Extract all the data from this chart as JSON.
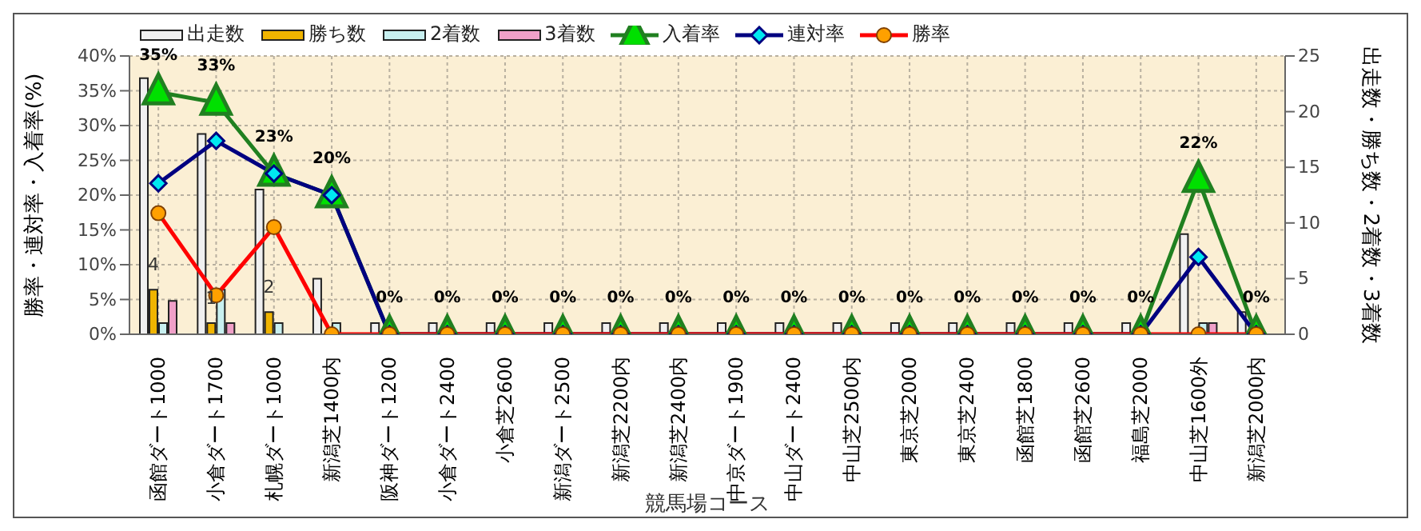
{
  "chart_data": {
    "type": "bar",
    "xlabel": "競馬場コース",
    "ylabel": "勝率・連対率・入着率(%)",
    "y2label": "出走数・勝ち数・2着数・3着数",
    "categories": [
      "函館ダート1000",
      "小倉ダート1700",
      "札幌ダート1000",
      "新潟芝1400内",
      "阪神ダート1200",
      "小倉ダート2400",
      "小倉芝2600",
      "新潟ダート2500",
      "新潟芝2200内",
      "新潟芝2400内",
      "中京ダート1900",
      "中山ダート2400",
      "中山芝2500内",
      "東京芝2000",
      "東京芝2400",
      "函館芝1800",
      "函館芝2600",
      "福島芝2000",
      "中山芝1600外",
      "新潟芝2000内"
    ],
    "series": [
      {
        "name": "出走数",
        "axis": "y2",
        "color": "#f0f0f0",
        "values": [
          23,
          18,
          13,
          5,
          1,
          1,
          1,
          1,
          1,
          1,
          1,
          1,
          1,
          1,
          1,
          1,
          1,
          1,
          9,
          2
        ]
      },
      {
        "name": "勝ち数",
        "axis": "y2",
        "color": "#f0b400",
        "values": [
          4,
          1,
          2,
          0,
          0,
          0,
          0,
          0,
          0,
          0,
          0,
          0,
          0,
          0,
          0,
          0,
          0,
          0,
          0,
          0
        ],
        "value_labels": [
          "4",
          "1",
          "2",
          null,
          null,
          null,
          null,
          null,
          null,
          null,
          null,
          null,
          null,
          null,
          null,
          null,
          null,
          null,
          null,
          null
        ]
      },
      {
        "name": "2着数",
        "axis": "y2",
        "color": "#c8f0f0",
        "values": [
          1,
          4,
          1,
          1,
          0,
          0,
          0,
          0,
          0,
          0,
          0,
          0,
          0,
          0,
          0,
          0,
          0,
          0,
          1,
          0
        ]
      },
      {
        "name": "3着数",
        "axis": "y2",
        "color": "#f0a0c8",
        "values": [
          3,
          1,
          0,
          0,
          0,
          0,
          0,
          0,
          0,
          0,
          0,
          0,
          0,
          0,
          0,
          0,
          0,
          0,
          1,
          0
        ]
      },
      {
        "name": "入着率",
        "type": "line",
        "color": "#208020",
        "marker": "triangle",
        "values": [
          34.8,
          33.3,
          23.1,
          20,
          0,
          0,
          0,
          0,
          0,
          0,
          0,
          0,
          0,
          0,
          0,
          0,
          0,
          0,
          22.2,
          0
        ],
        "value_labels": [
          "35%",
          "33%",
          "23%",
          "20%",
          "0%",
          "0%",
          "0%",
          "0%",
          "0%",
          "0%",
          "0%",
          "0%",
          "0%",
          "0%",
          "0%",
          "0%",
          "0%",
          "0%",
          "22%",
          "0%"
        ]
      },
      {
        "name": "連対率",
        "type": "line",
        "color": "#000080",
        "marker": "diamond",
        "values": [
          21.7,
          27.8,
          23.1,
          20,
          0,
          0,
          0,
          0,
          0,
          0,
          0,
          0,
          0,
          0,
          0,
          0,
          0,
          0,
          11.1,
          0
        ]
      },
      {
        "name": "勝率",
        "type": "line",
        "color": "#ff0000",
        "marker": "circle",
        "values": [
          17.4,
          5.6,
          15.4,
          0,
          0,
          0,
          0,
          0,
          0,
          0,
          0,
          0,
          0,
          0,
          0,
          0,
          0,
          0,
          0,
          0
        ]
      }
    ],
    "ylim": [
      0,
      40
    ],
    "yticks": [
      {
        "value": 0,
        "label": "0%"
      },
      {
        "value": 5,
        "label": "5%"
      },
      {
        "value": 10,
        "label": "10%"
      },
      {
        "value": 15,
        "label": "15%"
      },
      {
        "value": 20,
        "label": "20%"
      },
      {
        "value": 25,
        "label": "25%"
      },
      {
        "value": 30,
        "label": "30%"
      },
      {
        "value": 35,
        "label": "35%"
      },
      {
        "value": 40,
        "label": "40%"
      }
    ],
    "y2lim": [
      0,
      25
    ],
    "y2ticks": [
      0,
      5,
      10,
      15,
      20,
      25
    ],
    "grid": true,
    "legend": "top"
  }
}
